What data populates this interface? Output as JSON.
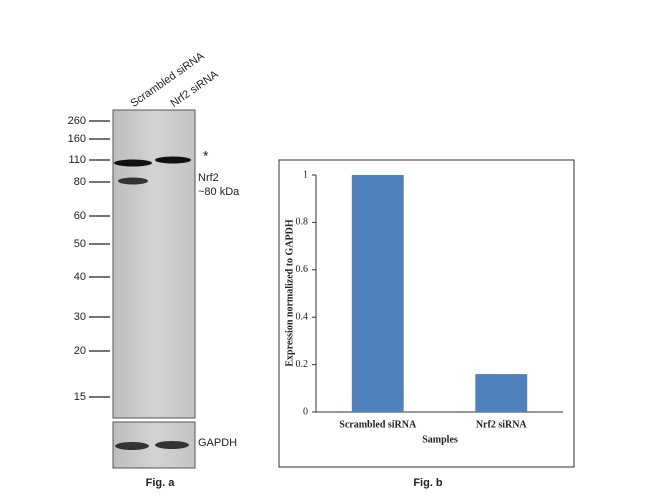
{
  "blot": {
    "lanes": [
      "Scrambled siRNA",
      "Nrf2 siRNA"
    ],
    "markers": [
      260,
      160,
      110,
      80,
      60,
      50,
      40,
      30,
      20,
      15
    ],
    "annotations": {
      "asterisk": "*",
      "target": "Nrf2",
      "target_size": "~80 kDa",
      "loading_control": "GAPDH"
    },
    "caption": "Fig. a"
  },
  "chart_data": {
    "type": "bar",
    "categories": [
      "Scrambled siRNA",
      "Nrf2 siRNA"
    ],
    "values": [
      1,
      0.16
    ],
    "color": "#4f81bd",
    "ylim": [
      0,
      1
    ],
    "yticks": [
      0,
      0.2,
      0.4,
      0.6,
      0.8,
      1
    ],
    "xlabel": "Samples",
    "ylabel": "Expression normalized to  GAPDH",
    "caption": "Fig. b"
  }
}
